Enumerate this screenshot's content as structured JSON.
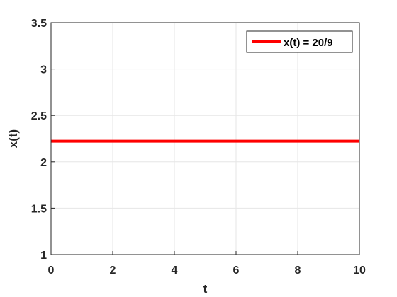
{
  "chart_data": {
    "type": "line",
    "title": "",
    "xlabel": "t",
    "ylabel": "x(t)",
    "xlim": [
      0,
      10
    ],
    "ylim": [
      1,
      3.5
    ],
    "xticks": [
      0,
      2,
      4,
      6,
      8,
      10
    ],
    "xtick_labels": [
      "0",
      "2",
      "4",
      "6",
      "8",
      "10"
    ],
    "yticks": [
      1,
      1.5,
      2,
      2.5,
      3,
      3.5
    ],
    "ytick_labels": [
      "1",
      "1.5",
      "2",
      "2.5",
      "3",
      "3.5"
    ],
    "grid": true,
    "legend_position": "top-right",
    "series": [
      {
        "name": "x(t) = 20/9",
        "color": "#ff0000",
        "x": [
          0,
          10
        ],
        "y": [
          2.2222,
          2.2222
        ]
      }
    ]
  }
}
